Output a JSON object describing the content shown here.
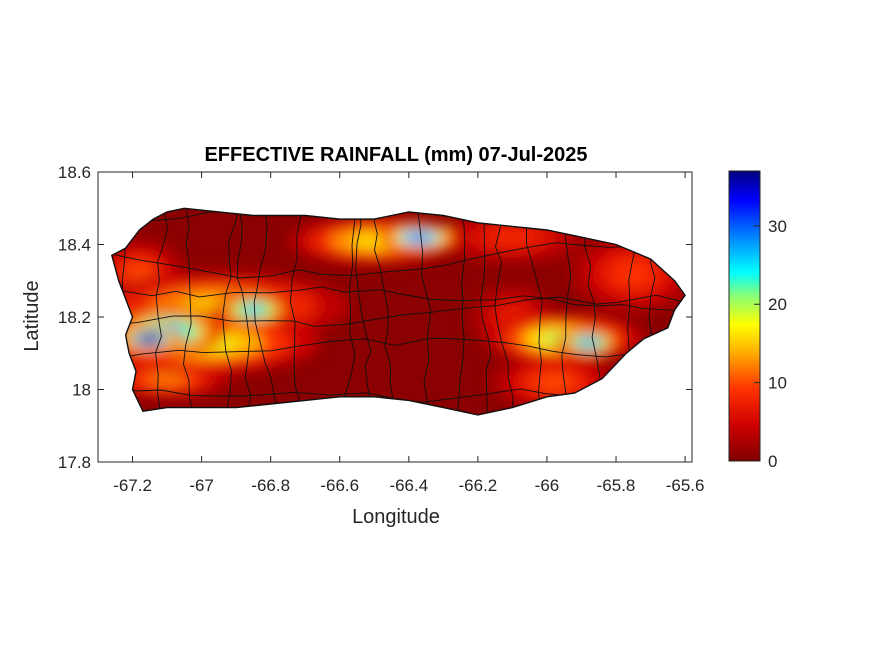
{
  "chart_data": {
    "type": "heatmap",
    "title": "EFFECTIVE RAINFALL (mm) 07-Jul-2025",
    "xlabel": "Longitude",
    "ylabel": "Latitude",
    "xlim": [
      -67.3,
      -65.58
    ],
    "ylim": [
      17.8,
      18.6
    ],
    "x_ticks": [
      -67.2,
      -67,
      -66.8,
      -66.6,
      -66.4,
      -66.2,
      -66,
      -65.8,
      -65.6
    ],
    "x_tick_labels": [
      "-67.2",
      "-67",
      "-66.8",
      "-66.6",
      "-66.4",
      "-66.2",
      "-66",
      "-65.8",
      "-65.6"
    ],
    "y_ticks": [
      17.8,
      18,
      18.2,
      18.4,
      18.6
    ],
    "y_tick_labels": [
      "17.8",
      "18",
      "18.2",
      "18.4",
      "18.6"
    ],
    "colorbar": {
      "colormap": "jet",
      "range": [
        0,
        37
      ],
      "ticks": [
        0,
        10,
        20,
        30
      ],
      "tick_labels": [
        "0",
        "10",
        "20",
        "30"
      ]
    },
    "grid": false,
    "region_outline": [
      [
        -67.26,
        18.37
      ],
      [
        -67.22,
        18.39
      ],
      [
        -67.18,
        18.44
      ],
      [
        -67.14,
        18.47
      ],
      [
        -67.1,
        18.49
      ],
      [
        -67.05,
        18.5
      ],
      [
        -66.95,
        18.49
      ],
      [
        -66.85,
        18.48
      ],
      [
        -66.7,
        18.48
      ],
      [
        -66.6,
        18.47
      ],
      [
        -66.5,
        18.47
      ],
      [
        -66.4,
        18.49
      ],
      [
        -66.3,
        18.48
      ],
      [
        -66.2,
        18.46
      ],
      [
        -66.1,
        18.45
      ],
      [
        -66.0,
        18.44
      ],
      [
        -65.9,
        18.42
      ],
      [
        -65.8,
        18.4
      ],
      [
        -65.7,
        18.36
      ],
      [
        -65.63,
        18.3
      ],
      [
        -65.6,
        18.26
      ],
      [
        -65.63,
        18.22
      ],
      [
        -65.65,
        18.17
      ],
      [
        -65.72,
        18.14
      ],
      [
        -65.77,
        18.1
      ],
      [
        -65.84,
        18.03
      ],
      [
        -65.92,
        17.99
      ],
      [
        -66.0,
        17.98
      ],
      [
        -66.1,
        17.95
      ],
      [
        -66.2,
        17.93
      ],
      [
        -66.3,
        17.95
      ],
      [
        -66.4,
        17.97
      ],
      [
        -66.5,
        17.98
      ],
      [
        -66.6,
        17.98
      ],
      [
        -66.7,
        17.97
      ],
      [
        -66.8,
        17.96
      ],
      [
        -66.9,
        17.95
      ],
      [
        -67.0,
        17.95
      ],
      [
        -67.1,
        17.95
      ],
      [
        -67.17,
        17.94
      ],
      [
        -67.2,
        18.0
      ],
      [
        -67.19,
        18.05
      ],
      [
        -67.21,
        18.1
      ],
      [
        -67.22,
        18.15
      ],
      [
        -67.2,
        18.2
      ],
      [
        -67.22,
        18.25
      ],
      [
        -67.24,
        18.3
      ],
      [
        -67.26,
        18.37
      ]
    ],
    "rain_features": [
      {
        "lon": -67.15,
        "lat": 18.14,
        "rx": 0.05,
        "ry": 0.02,
        "value": 37
      },
      {
        "lon": -67.1,
        "lat": 18.16,
        "rx": 0.09,
        "ry": 0.035,
        "value": 28
      },
      {
        "lon": -67.0,
        "lat": 18.13,
        "rx": 0.18,
        "ry": 0.045,
        "value": 18
      },
      {
        "lon": -66.85,
        "lat": 18.22,
        "rx": 0.06,
        "ry": 0.025,
        "value": 26
      },
      {
        "lon": -66.95,
        "lat": 18.23,
        "rx": 0.2,
        "ry": 0.05,
        "value": 15
      },
      {
        "lon": -67.18,
        "lat": 18.32,
        "rx": 0.07,
        "ry": 0.05,
        "value": 10
      },
      {
        "lon": -66.5,
        "lat": 18.41,
        "rx": 0.13,
        "ry": 0.035,
        "value": 16
      },
      {
        "lon": -66.37,
        "lat": 18.42,
        "rx": 0.06,
        "ry": 0.02,
        "value": 31
      },
      {
        "lon": -66.1,
        "lat": 18.42,
        "rx": 0.12,
        "ry": 0.04,
        "value": 8
      },
      {
        "lon": -65.75,
        "lat": 18.32,
        "rx": 0.1,
        "ry": 0.06,
        "value": 9
      },
      {
        "lon": -65.95,
        "lat": 18.14,
        "rx": 0.12,
        "ry": 0.035,
        "value": 20
      },
      {
        "lon": -65.88,
        "lat": 18.13,
        "rx": 0.05,
        "ry": 0.02,
        "value": 28
      },
      {
        "lon": -65.98,
        "lat": 18.02,
        "rx": 0.1,
        "ry": 0.04,
        "value": 10
      },
      {
        "lon": -66.1,
        "lat": 18.2,
        "rx": 0.07,
        "ry": 0.05,
        "value": 7
      },
      {
        "lon": -67.1,
        "lat": 18.03,
        "rx": 0.1,
        "ry": 0.03,
        "value": 12
      }
    ]
  }
}
